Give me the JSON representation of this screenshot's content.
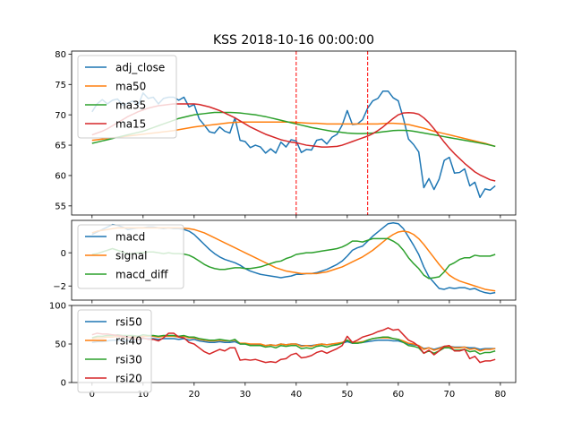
{
  "title": "KSS 2018-10-16 00:00:00",
  "colors": {
    "blue": "#1f77b4",
    "orange": "#ff7f0e",
    "green": "#2ca02c",
    "red": "#d62728",
    "vline": "#ff0000"
  },
  "chart_data": [
    {
      "type": "line",
      "name": "price panel",
      "title": "KSS 2018-10-16 00:00:00",
      "xlim": [
        -4,
        83
      ],
      "ylim": [
        53.5,
        80.5
      ],
      "yticks": [
        55,
        60,
        65,
        70,
        75,
        80
      ],
      "xticks": [
        0,
        10,
        20,
        30,
        40,
        50,
        60,
        70,
        80
      ],
      "show_xticklabels": false,
      "vlines": [
        40,
        54
      ],
      "legend": "upper-left",
      "series": [
        {
          "name": "adj_close",
          "color": "#1f77b4",
          "values": [
            70.5,
            71.8,
            72.5,
            71.8,
            72.4,
            72.6,
            71.6,
            71.9,
            72.3,
            71.5,
            73.6,
            72.7,
            72.9,
            71.8,
            72.7,
            72.9,
            72.9,
            72.4,
            72.9,
            71.3,
            71.7,
            69.3,
            68.3,
            67.2,
            67.0,
            68.0,
            67.3,
            67.0,
            69.5,
            65.8,
            65.6,
            64.6,
            65.0,
            64.7,
            63.7,
            64.4,
            63.7,
            65.5,
            64.7,
            65.9,
            65.7,
            63.8,
            64.3,
            64.2,
            65.8,
            66.0,
            65.2,
            66.3,
            66.8,
            68.3,
            70.7,
            68.4,
            68.5,
            69.2,
            71.1,
            72.3,
            72.7,
            73.9,
            73.9,
            72.8,
            72.3,
            69.4,
            66.0,
            65.1,
            63.9,
            58.0,
            59.5,
            57.7,
            59.4,
            62.5,
            63.0,
            60.4,
            60.5,
            61.1,
            58.3,
            58.9,
            56.4,
            57.8,
            57.6,
            58.3
          ]
        },
        {
          "name": "ma50",
          "color": "#ff7f0e",
          "values": [
            65.8,
            65.9,
            66.0,
            66.1,
            66.2,
            66.3,
            66.4,
            66.5,
            66.6,
            66.7,
            66.8,
            66.9,
            67.0,
            67.1,
            67.2,
            67.3,
            67.4,
            67.55,
            67.7,
            67.85,
            68.0,
            68.1,
            68.2,
            68.3,
            68.4,
            68.5,
            68.6,
            68.7,
            68.75,
            68.8,
            68.8,
            68.8,
            68.8,
            68.8,
            68.8,
            68.8,
            68.8,
            68.8,
            68.8,
            68.8,
            68.75,
            68.7,
            68.65,
            68.6,
            68.6,
            68.55,
            68.5,
            68.5,
            68.5,
            68.5,
            68.5,
            68.5,
            68.5,
            68.5,
            68.5,
            68.5,
            68.5,
            68.55,
            68.6,
            68.6,
            68.55,
            68.5,
            68.4,
            68.2,
            68.0,
            67.8,
            67.55,
            67.3,
            67.1,
            66.9,
            66.7,
            66.5,
            66.3,
            66.1,
            65.9,
            65.7,
            65.5,
            65.3,
            65.05,
            64.8
          ]
        },
        {
          "name": "ma35",
          "color": "#2ca02c",
          "values": [
            65.3,
            65.5,
            65.7,
            65.9,
            66.1,
            66.3,
            66.5,
            66.7,
            66.9,
            67.1,
            67.3,
            67.6,
            67.9,
            68.2,
            68.5,
            68.8,
            69.1,
            69.4,
            69.6,
            69.8,
            70.0,
            70.1,
            70.2,
            70.3,
            70.4,
            70.4,
            70.4,
            70.4,
            70.35,
            70.3,
            70.2,
            70.1,
            70.0,
            69.85,
            69.7,
            69.5,
            69.3,
            69.1,
            68.9,
            68.7,
            68.5,
            68.3,
            68.1,
            67.9,
            67.75,
            67.6,
            67.45,
            67.3,
            67.2,
            67.1,
            67.0,
            66.95,
            66.9,
            66.9,
            66.95,
            67.0,
            67.1,
            67.2,
            67.3,
            67.4,
            67.45,
            67.45,
            67.4,
            67.3,
            67.15,
            67.0,
            66.85,
            66.7,
            66.55,
            66.4,
            66.25,
            66.1,
            65.95,
            65.8,
            65.65,
            65.5,
            65.35,
            65.2,
            65.0,
            64.8
          ]
        },
        {
          "name": "ma15",
          "color": "#d62728",
          "values": [
            66.7,
            67.0,
            67.3,
            67.7,
            68.2,
            68.7,
            69.2,
            69.7,
            70.1,
            70.5,
            70.8,
            71.1,
            71.3,
            71.5,
            71.6,
            71.7,
            71.8,
            71.8,
            71.8,
            71.8,
            71.8,
            71.7,
            71.5,
            71.3,
            71.0,
            70.7,
            70.3,
            69.9,
            69.5,
            69.0,
            68.5,
            68.0,
            67.6,
            67.2,
            66.8,
            66.5,
            66.2,
            65.9,
            65.7,
            65.5,
            65.4,
            65.2,
            65.0,
            64.9,
            64.8,
            64.7,
            64.7,
            64.75,
            64.8,
            65.0,
            65.3,
            65.6,
            65.9,
            66.2,
            66.5,
            66.9,
            67.4,
            68.0,
            68.7,
            69.4,
            70.0,
            70.3,
            70.35,
            70.3,
            70.1,
            69.5,
            68.7,
            67.7,
            66.6,
            65.5,
            64.5,
            63.6,
            62.8,
            62.0,
            61.3,
            60.6,
            60.1,
            59.7,
            59.3,
            59.1
          ]
        }
      ]
    },
    {
      "type": "line",
      "name": "macd panel",
      "xlim": [
        -4,
        83
      ],
      "ylim": [
        -2.85,
        1.95
      ],
      "yticks": [
        -2,
        0
      ],
      "xticks": [
        0,
        10,
        20,
        30,
        40,
        50,
        60,
        70,
        80
      ],
      "show_xticklabels": false,
      "legend": "upper-left",
      "series": [
        {
          "name": "macd",
          "color": "#1f77b4",
          "values": [
            1.1,
            1.25,
            1.4,
            1.55,
            1.7,
            1.65,
            1.55,
            1.4,
            1.45,
            1.5,
            1.5,
            1.55,
            1.55,
            1.5,
            1.45,
            1.5,
            1.45,
            1.45,
            1.4,
            1.3,
            1.1,
            0.8,
            0.5,
            0.2,
            -0.05,
            -0.25,
            -0.4,
            -0.5,
            -0.6,
            -0.75,
            -0.95,
            -1.1,
            -1.2,
            -1.3,
            -1.35,
            -1.4,
            -1.45,
            -1.5,
            -1.45,
            -1.4,
            -1.3,
            -1.3,
            -1.25,
            -1.25,
            -1.2,
            -1.1,
            -1.0,
            -0.85,
            -0.7,
            -0.5,
            -0.2,
            0.15,
            0.3,
            0.4,
            0.7,
            1.0,
            1.25,
            1.5,
            1.75,
            1.8,
            1.75,
            1.45,
            0.95,
            0.45,
            -0.1,
            -0.85,
            -1.45,
            -1.8,
            -2.15,
            -2.2,
            -2.1,
            -2.15,
            -2.1,
            -2.1,
            -2.2,
            -2.15,
            -2.3,
            -2.4,
            -2.45,
            -2.4
          ]
        },
        {
          "name": "signal",
          "color": "#ff7f0e",
          "values": [
            1.2,
            1.3,
            1.35,
            1.4,
            1.45,
            1.5,
            1.5,
            1.5,
            1.5,
            1.5,
            1.5,
            1.5,
            1.5,
            1.5,
            1.5,
            1.5,
            1.5,
            1.5,
            1.48,
            1.45,
            1.4,
            1.3,
            1.2,
            1.05,
            0.9,
            0.75,
            0.6,
            0.45,
            0.3,
            0.15,
            0.0,
            -0.15,
            -0.3,
            -0.45,
            -0.6,
            -0.75,
            -0.9,
            -1.0,
            -1.1,
            -1.15,
            -1.2,
            -1.25,
            -1.25,
            -1.25,
            -1.25,
            -1.2,
            -1.15,
            -1.05,
            -0.95,
            -0.85,
            -0.7,
            -0.55,
            -0.4,
            -0.25,
            -0.05,
            0.15,
            0.4,
            0.65,
            0.9,
            1.1,
            1.25,
            1.3,
            1.25,
            1.1,
            0.85,
            0.5,
            0.1,
            -0.3,
            -0.7,
            -1.05,
            -1.35,
            -1.55,
            -1.7,
            -1.8,
            -1.9,
            -2.0,
            -2.1,
            -2.2,
            -2.25,
            -2.3
          ]
        },
        {
          "name": "macd_diff",
          "color": "#2ca02c",
          "values": [
            -0.1,
            -0.05,
            0.05,
            0.15,
            0.25,
            0.15,
            0.05,
            -0.1,
            -0.05,
            0.0,
            0.0,
            0.05,
            0.05,
            0.0,
            -0.05,
            0.0,
            -0.05,
            -0.05,
            -0.08,
            -0.15,
            -0.3,
            -0.5,
            -0.7,
            -0.85,
            -0.95,
            -1.0,
            -1.0,
            -0.95,
            -0.9,
            -0.9,
            -0.95,
            -0.95,
            -0.9,
            -0.85,
            -0.75,
            -0.65,
            -0.55,
            -0.5,
            -0.35,
            -0.25,
            -0.1,
            -0.05,
            0.0,
            0.0,
            0.05,
            0.1,
            0.15,
            0.2,
            0.25,
            0.35,
            0.5,
            0.7,
            0.7,
            0.65,
            0.75,
            0.85,
            0.85,
            0.85,
            0.85,
            0.7,
            0.5,
            0.15,
            -0.3,
            -0.65,
            -0.95,
            -1.35,
            -1.55,
            -1.5,
            -1.45,
            -1.15,
            -0.75,
            -0.6,
            -0.4,
            -0.3,
            -0.3,
            -0.15,
            -0.2,
            -0.2,
            -0.2,
            -0.1
          ]
        }
      ]
    },
    {
      "type": "line",
      "name": "rsi panel",
      "xlim": [
        -4,
        83
      ],
      "ylim": [
        0,
        100
      ],
      "yticks": [
        0,
        50,
        100
      ],
      "xticks": [
        0,
        10,
        20,
        30,
        40,
        50,
        60,
        70,
        80
      ],
      "xticklabels": [
        "0",
        "10",
        "20",
        "30",
        "40",
        "50",
        "60",
        "70",
        "80"
      ],
      "legend": "upper-left",
      "series": [
        {
          "name": "rsi50",
          "color": "#1f77b4",
          "values": [
            52,
            53,
            53,
            54,
            55,
            55,
            54,
            54,
            55,
            55,
            57,
            57,
            57,
            56,
            57,
            57,
            57,
            56,
            57,
            55,
            56,
            54,
            53,
            52,
            52,
            53,
            52,
            52,
            53,
            50,
            50,
            49,
            49,
            49,
            48,
            49,
            48,
            50,
            49,
            50,
            50,
            48,
            48,
            48,
            49,
            50,
            49,
            50,
            50,
            51,
            53,
            51,
            51,
            52,
            53,
            54,
            55,
            55,
            55,
            54,
            54,
            52,
            50,
            49,
            48,
            44,
            45,
            43,
            45,
            47,
            47,
            46,
            46,
            46,
            45,
            45,
            43,
            44,
            44,
            44
          ]
        },
        {
          "name": "rsi40",
          "color": "#ff7f0e",
          "values": [
            57,
            58,
            58,
            59,
            59,
            60,
            59,
            59,
            59,
            59,
            60,
            60,
            60,
            59,
            60,
            60,
            60,
            59,
            60,
            58,
            58,
            56,
            55,
            54,
            54,
            55,
            54,
            54,
            55,
            51,
            51,
            50,
            50,
            50,
            48,
            49,
            48,
            50,
            49,
            50,
            50,
            47,
            48,
            47,
            49,
            50,
            49,
            50,
            51,
            52,
            55,
            52,
            52,
            53,
            55,
            57,
            58,
            58,
            58,
            57,
            56,
            54,
            51,
            50,
            48,
            43,
            45,
            42,
            44,
            47,
            47,
            45,
            45,
            46,
            43,
            44,
            41,
            43,
            43,
            44
          ]
        },
        {
          "name": "rsi30",
          "color": "#2ca02c",
          "values": [
            58,
            60,
            60,
            61,
            61,
            62,
            61,
            61,
            61,
            60,
            62,
            61,
            61,
            60,
            61,
            61,
            61,
            60,
            61,
            59,
            59,
            57,
            56,
            55,
            55,
            56,
            55,
            54,
            56,
            50,
            50,
            48,
            48,
            48,
            46,
            47,
            45,
            48,
            47,
            48,
            48,
            44,
            45,
            44,
            47,
            48,
            46,
            48,
            49,
            51,
            55,
            51,
            51,
            52,
            55,
            57,
            58,
            59,
            59,
            57,
            56,
            52,
            48,
            47,
            45,
            38,
            41,
            38,
            41,
            45,
            45,
            42,
            42,
            43,
            40,
            41,
            37,
            39,
            39,
            41
          ]
        },
        {
          "name": "rsi20",
          "color": "#d62728",
          "values": [
            62,
            64,
            63,
            63,
            62,
            61,
            60,
            59,
            57,
            56,
            58,
            56,
            56,
            54,
            58,
            64,
            64,
            59,
            58,
            52,
            50,
            45,
            40,
            37,
            40,
            43,
            41,
            45,
            45,
            29,
            30,
            29,
            30,
            28,
            26,
            27,
            26,
            30,
            31,
            36,
            38,
            32,
            33,
            35,
            39,
            41,
            38,
            41,
            44,
            48,
            60,
            52,
            55,
            59,
            61,
            63,
            66,
            68,
            71,
            68,
            69,
            62,
            55,
            52,
            47,
            38,
            42,
            36,
            41,
            47,
            48,
            41,
            41,
            43,
            31,
            34,
            26,
            28,
            28,
            30
          ]
        }
      ]
    }
  ]
}
